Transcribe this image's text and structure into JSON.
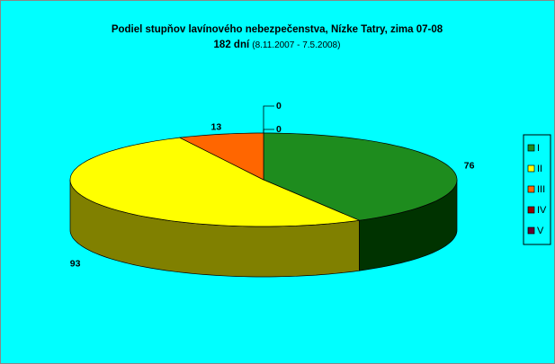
{
  "chart_data": {
    "type": "pie3d",
    "title": "Podiel stupňov lavínového nebezpečenstva, Nízke Tatry,  zima 07-08",
    "subtitle_bold": "182 dní",
    "subtitle": "(8.11.2007 - 7.5.2008)",
    "categories": [
      "I",
      "II",
      "III",
      "IV",
      "V"
    ],
    "values": [
      76,
      93,
      13,
      0,
      0
    ],
    "colors": [
      "#1e8c1e",
      "#ffff00",
      "#ff6600",
      "#990000",
      "#660033"
    ],
    "side_colors": [
      "#003300",
      "#808000",
      "#993300",
      "#4d0000",
      "#330019"
    ],
    "background": "#00ffff",
    "legend": "right"
  }
}
